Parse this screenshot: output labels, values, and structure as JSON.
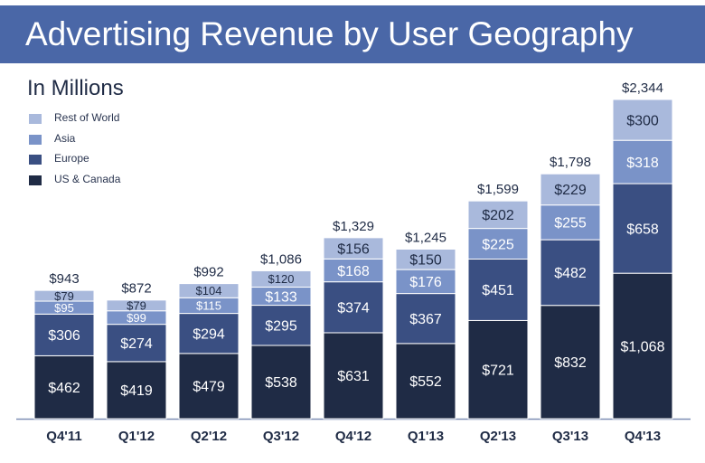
{
  "title": "Advertising Revenue by User Geography",
  "subtitle": "In Millions",
  "colors": {
    "header_bg": "#4a67a7",
    "rest_of_world": "#a9b9dc",
    "asia": "#7a93c8",
    "europe": "#3a4f82",
    "us_canada": "#1f2b45",
    "axis": "#7f8fb5",
    "text": "#1f2b45"
  },
  "legend": [
    {
      "label": "Rest of World",
      "color_key": "rest_of_world"
    },
    {
      "label": "Asia",
      "color_key": "asia"
    },
    {
      "label": "Europe",
      "color_key": "europe"
    },
    {
      "label": "US & Canada",
      "color_key": "us_canada"
    }
  ],
  "chart_data": {
    "type": "bar",
    "stacked": true,
    "categories": [
      "Q4'11",
      "Q1'12",
      "Q2'12",
      "Q3'12",
      "Q4'12",
      "Q1'13",
      "Q2'13",
      "Q3'13",
      "Q4'13"
    ],
    "series": [
      {
        "name": "US & Canada",
        "values": [
          462,
          419,
          479,
          538,
          631,
          552,
          721,
          832,
          1068
        ],
        "labels": [
          "$462",
          "$419",
          "$479",
          "$538",
          "$631",
          "$552",
          "$721",
          "$832",
          "$1,068"
        ]
      },
      {
        "name": "Europe",
        "values": [
          306,
          274,
          294,
          295,
          374,
          367,
          451,
          482,
          658
        ],
        "labels": [
          "$306",
          "$274",
          "$294",
          "$295",
          "$374",
          "$367",
          "$451",
          "$482",
          "$658"
        ]
      },
      {
        "name": "Asia",
        "values": [
          95,
          99,
          115,
          133,
          168,
          176,
          225,
          255,
          318
        ],
        "labels": [
          "$95",
          "$99",
          "$115",
          "$133",
          "$168",
          "$176",
          "$225",
          "$255",
          "$318"
        ]
      },
      {
        "name": "Rest of World",
        "values": [
          79,
          79,
          104,
          120,
          156,
          150,
          202,
          229,
          300
        ],
        "labels": [
          "$79",
          "$79",
          "$104",
          "$120",
          "$156",
          "$150",
          "$202",
          "$229",
          "$300"
        ]
      }
    ],
    "totals": [
      943,
      872,
      992,
      1086,
      1329,
      1245,
      1599,
      1798,
      2344
    ],
    "total_labels": [
      "$943",
      "$872",
      "$992",
      "$1,086",
      "$1,329",
      "$1,245",
      "$1,599",
      "$1,798",
      "$2,344"
    ],
    "ylim": [
      0,
      2344
    ],
    "grid": false
  }
}
